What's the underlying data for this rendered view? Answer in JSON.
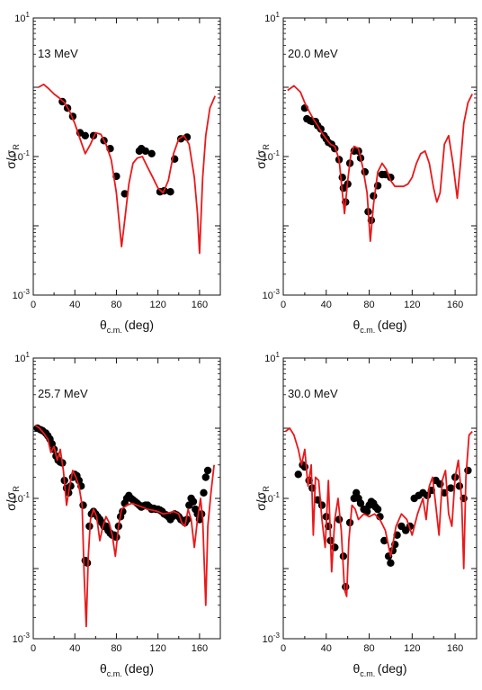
{
  "chart_data": [
    {
      "type": "scatter",
      "annotation": "13 MeV",
      "xlabel": "θc.m. (deg)",
      "ylabel": "σ/σR",
      "xlim": [
        0,
        180
      ],
      "ylim": [
        0.001,
        10
      ],
      "yscale": "log",
      "x_ticks": [
        "0",
        "40",
        "80",
        "120",
        "160"
      ],
      "y_ticks": [
        {
          "base": "10",
          "exp": "1"
        },
        {
          "base": "10",
          "exp": "-1"
        },
        {
          "base": "10",
          "exp": "-3"
        }
      ],
      "series": [
        {
          "mark": "points",
          "color": "#000000",
          "x": [
            28,
            33,
            38,
            45,
            50,
            58,
            68,
            74,
            80,
            88,
            102,
            104,
            108,
            114,
            122,
            126,
            132,
            136,
            142,
            148
          ],
          "y": [
            0.62,
            0.5,
            0.38,
            0.22,
            0.2,
            0.2,
            0.17,
            0.13,
            0.052,
            0.029,
            0.12,
            0.13,
            0.12,
            0.11,
            0.031,
            0.032,
            0.031,
            0.092,
            0.18,
            0.19
          ]
        },
        {
          "mark": "line",
          "color": "#e8191b",
          "x": [
            5,
            10,
            15,
            20,
            25,
            30,
            35,
            40,
            45,
            50,
            55,
            60,
            65,
            70,
            75,
            80,
            85,
            88,
            92,
            96,
            100,
            105,
            110,
            115,
            120,
            125,
            130,
            135,
            140,
            145,
            150,
            155,
            158,
            160,
            163,
            166,
            170,
            175
          ],
          "y": [
            1.0,
            1.1,
            0.95,
            0.8,
            0.7,
            0.6,
            0.45,
            0.3,
            0.18,
            0.11,
            0.15,
            0.22,
            0.21,
            0.15,
            0.09,
            0.03,
            0.005,
            0.012,
            0.04,
            0.08,
            0.095,
            0.1,
            0.07,
            0.05,
            0.035,
            0.03,
            0.045,
            0.11,
            0.18,
            0.2,
            0.15,
            0.05,
            0.015,
            0.004,
            0.05,
            0.2,
            0.5,
            0.75
          ]
        }
      ]
    },
    {
      "type": "scatter",
      "annotation": "20.0 MeV",
      "xlabel": "θc.m. (deg)",
      "ylabel": "σ/σR",
      "xlim": [
        0,
        180
      ],
      "ylim": [
        0.001,
        10
      ],
      "yscale": "log",
      "x_ticks": [
        "0",
        "40",
        "80",
        "120",
        "160"
      ],
      "y_ticks": [
        {
          "base": "10",
          "exp": "1"
        },
        {
          "base": "10",
          "exp": "-1"
        },
        {
          "base": "10",
          "exp": "-3"
        }
      ],
      "series": [
        {
          "mark": "points",
          "color": "#000000",
          "x": [
            20,
            22,
            25,
            27,
            30,
            32,
            35,
            38,
            40,
            42,
            45,
            48,
            52,
            55,
            56,
            58,
            60,
            62,
            66,
            70,
            72,
            76,
            79,
            82,
            84,
            88,
            92,
            95,
            100
          ],
          "y": [
            0.5,
            0.35,
            0.33,
            0.32,
            0.32,
            0.28,
            0.25,
            0.2,
            0.18,
            0.16,
            0.15,
            0.13,
            0.09,
            0.05,
            0.035,
            0.022,
            0.04,
            0.08,
            0.12,
            0.12,
            0.095,
            0.06,
            0.016,
            0.012,
            0.027,
            0.038,
            0.055,
            0.055,
            0.05
          ]
        },
        {
          "mark": "line",
          "color": "#e8191b",
          "x": [
            4,
            10,
            16,
            20,
            24,
            28,
            32,
            36,
            40,
            44,
            48,
            52,
            55,
            57,
            60,
            63,
            66,
            70,
            74,
            78,
            81,
            84,
            88,
            92,
            96,
            100,
            104,
            108,
            112,
            116,
            120,
            124,
            128,
            132,
            136,
            140,
            143,
            146,
            150,
            154,
            158,
            162,
            165,
            168,
            172,
            176
          ],
          "y": [
            0.9,
            1.05,
            0.85,
            0.6,
            0.45,
            0.35,
            0.28,
            0.22,
            0.18,
            0.15,
            0.14,
            0.09,
            0.03,
            0.015,
            0.045,
            0.11,
            0.14,
            0.13,
            0.07,
            0.03,
            0.006,
            0.02,
            0.06,
            0.08,
            0.065,
            0.045,
            0.037,
            0.037,
            0.037,
            0.04,
            0.05,
            0.08,
            0.11,
            0.12,
            0.08,
            0.035,
            0.022,
            0.03,
            0.15,
            0.2,
            0.08,
            0.025,
            0.08,
            0.3,
            0.6,
            0.8
          ]
        }
      ]
    },
    {
      "type": "scatter",
      "annotation": "25.7 MeV",
      "xlabel": "θc.m. (deg)",
      "ylabel": "σ/σR",
      "xlim": [
        0,
        180
      ],
      "ylim": [
        0.001,
        10
      ],
      "yscale": "log",
      "x_ticks": [
        "0",
        "40",
        "80",
        "120",
        "160"
      ],
      "y_ticks": [
        {
          "base": "10",
          "exp": "1"
        },
        {
          "base": "10",
          "exp": "-1"
        },
        {
          "base": "10",
          "exp": "-3"
        }
      ],
      "series": [
        {
          "mark": "points",
          "color": "#000000",
          "x": [
            4,
            7,
            9,
            12,
            14,
            16,
            18,
            20,
            22,
            24,
            26,
            28,
            30,
            32,
            34,
            36,
            38,
            40,
            42,
            44,
            46,
            48,
            50,
            52,
            54,
            56,
            58,
            60,
            62,
            64,
            66,
            68,
            70,
            72,
            74,
            76,
            78,
            80,
            82,
            84,
            86,
            88,
            90,
            92,
            94,
            96,
            98,
            100,
            102,
            104,
            106,
            108,
            110,
            112,
            114,
            116,
            118,
            120,
            122,
            124,
            126,
            128,
            130,
            132,
            134,
            136,
            138,
            140,
            142,
            144,
            146,
            148,
            150,
            152,
            154,
            156,
            158,
            160,
            162,
            164,
            166,
            168
          ],
          "y": [
            1.0,
            0.95,
            0.92,
            0.85,
            0.78,
            0.7,
            0.6,
            0.5,
            0.4,
            0.35,
            0.33,
            0.32,
            0.18,
            0.14,
            0.12,
            0.15,
            0.2,
            0.22,
            0.21,
            0.18,
            0.15,
            0.08,
            0.013,
            0.012,
            0.04,
            0.06,
            0.065,
            0.06,
            0.055,
            0.05,
            0.045,
            0.04,
            0.04,
            0.035,
            0.032,
            0.03,
            0.03,
            0.028,
            0.04,
            0.055,
            0.065,
            0.085,
            0.1,
            0.11,
            0.1,
            0.095,
            0.09,
            0.085,
            0.08,
            0.075,
            0.078,
            0.08,
            0.08,
            0.075,
            0.07,
            0.072,
            0.07,
            0.07,
            0.068,
            0.065,
            0.06,
            0.058,
            0.055,
            0.05,
            0.055,
            0.06,
            0.058,
            0.055,
            0.05,
            0.048,
            0.045,
            0.05,
            0.08,
            0.1,
            0.09,
            0.07,
            0.06,
            0.05,
            0.06,
            0.12,
            0.2,
            0.25
          ]
        },
        {
          "mark": "line",
          "color": "#e8191b",
          "x": [
            2,
            6,
            10,
            14,
            17,
            20,
            23,
            26,
            29,
            32,
            35,
            38,
            41,
            44,
            47,
            49,
            51,
            53,
            55,
            58,
            61,
            64,
            67,
            70,
            73,
            76,
            79,
            82,
            85,
            90,
            95,
            100,
            105,
            110,
            115,
            120,
            125,
            130,
            135,
            140,
            143,
            146,
            149,
            152,
            155,
            158,
            161,
            163,
            166,
            168,
            171,
            174
          ],
          "y": [
            1.1,
            1.0,
            0.85,
            0.7,
            0.45,
            0.55,
            0.35,
            0.5,
            0.25,
            0.08,
            0.15,
            0.25,
            0.2,
            0.15,
            0.08,
            0.008,
            0.0015,
            0.015,
            0.05,
            0.07,
            0.055,
            0.025,
            0.04,
            0.055,
            0.045,
            0.03,
            0.015,
            0.04,
            0.07,
            0.08,
            0.085,
            0.08,
            0.075,
            0.07,
            0.068,
            0.065,
            0.06,
            0.062,
            0.065,
            0.06,
            0.045,
            0.04,
            0.07,
            0.05,
            0.02,
            0.05,
            0.1,
            0.05,
            0.003,
            0.04,
            0.12,
            0.3
          ]
        }
      ]
    },
    {
      "type": "scatter",
      "annotation": "30.0 MeV",
      "xlabel": "θc.m. (deg)",
      "ylabel": "σ/σR",
      "xlim": [
        0,
        180
      ],
      "ylim": [
        0.001,
        10
      ],
      "yscale": "log",
      "x_ticks": [
        "0",
        "40",
        "80",
        "120",
        "160"
      ],
      "y_ticks": [
        {
          "base": "10",
          "exp": "1"
        },
        {
          "base": "10",
          "exp": "-1"
        },
        {
          "base": "10",
          "exp": "-3"
        }
      ],
      "series": [
        {
          "mark": "points",
          "color": "#000000",
          "x": [
            14,
            18,
            20,
            24,
            27,
            32,
            36,
            40,
            42,
            44,
            48,
            52,
            56,
            58,
            62,
            66,
            68,
            70,
            72,
            75,
            78,
            80,
            82,
            84,
            86,
            88,
            90,
            94,
            98,
            100,
            102,
            104,
            106,
            110,
            114,
            118,
            122,
            126,
            130,
            134,
            138,
            142,
            146,
            150,
            156,
            160,
            164,
            168,
            172
          ],
          "y": [
            0.22,
            0.3,
            0.28,
            0.18,
            0.14,
            0.095,
            0.08,
            0.055,
            0.04,
            0.025,
            0.02,
            0.05,
            0.015,
            0.0055,
            0.045,
            0.1,
            0.12,
            0.1,
            0.085,
            0.07,
            0.065,
            0.08,
            0.09,
            0.085,
            0.075,
            0.07,
            0.055,
            0.025,
            0.015,
            0.012,
            0.018,
            0.022,
            0.03,
            0.04,
            0.035,
            0.04,
            0.1,
            0.11,
            0.12,
            0.11,
            0.13,
            0.18,
            0.16,
            0.12,
            0.14,
            0.2,
            0.15,
            0.1,
            0.25
          ]
        },
        {
          "mark": "line",
          "color": "#e8191b",
          "x": [
            2,
            6,
            10,
            14,
            17,
            20,
            23,
            26,
            28,
            30,
            33,
            36,
            39,
            42,
            45,
            48,
            51,
            54,
            57,
            59,
            61,
            64,
            67,
            70,
            75,
            80,
            85,
            90,
            95,
            100,
            105,
            110,
            115,
            120,
            125,
            130,
            133,
            136,
            139,
            142,
            145,
            148,
            151,
            154,
            157,
            160,
            163,
            166,
            168,
            170,
            173,
            176
          ],
          "y": [
            0.9,
            1.0,
            0.8,
            0.5,
            0.3,
            0.5,
            0.15,
            0.3,
            0.03,
            0.2,
            0.18,
            0.05,
            0.02,
            0.18,
            0.009,
            0.05,
            0.1,
            0.035,
            0.005,
            0.004,
            0.025,
            0.08,
            0.07,
            0.05,
            0.06,
            0.055,
            0.06,
            0.05,
            0.035,
            0.015,
            0.04,
            0.06,
            0.05,
            0.03,
            0.06,
            0.1,
            0.05,
            0.15,
            0.2,
            0.08,
            0.03,
            0.18,
            0.25,
            0.06,
            0.04,
            0.2,
            0.35,
            0.1,
            0.01,
            0.2,
            0.8,
            0.9
          ]
        }
      ]
    }
  ]
}
